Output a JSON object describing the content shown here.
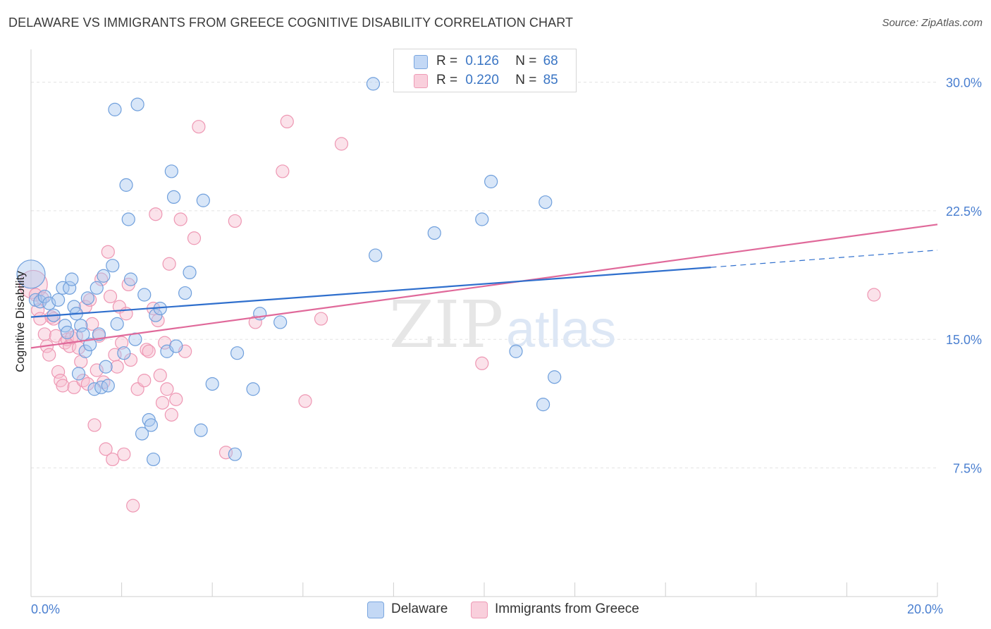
{
  "title": "DELAWARE VS IMMIGRANTS FROM GREECE COGNITIVE DISABILITY CORRELATION CHART",
  "source": "Source: ZipAtlas.com",
  "watermark": {
    "zip": "ZIP",
    "atlas": "atlas"
  },
  "colors": {
    "delaware_fill": "#a9c8f0",
    "delaware_stroke": "#6f9fdc",
    "delaware_line": "#2f6fcd",
    "greece_fill": "#f7bfd0",
    "greece_stroke": "#ee97b3",
    "greece_line": "#e0699a",
    "tick_text": "#4a7fd0",
    "grid": "#e3e3e3"
  },
  "legend": {
    "r_label": "R =",
    "n_label": "N =",
    "rows": [
      {
        "series": "Delaware",
        "r": "0.126",
        "n": "68"
      },
      {
        "series": "Immigrants from Greece",
        "r": "0.220",
        "n": "85"
      }
    ]
  },
  "chart_data": {
    "type": "scatter",
    "title": "DELAWARE VS IMMIGRANTS FROM GREECE COGNITIVE DISABILITY CORRELATION CHART",
    "xlabel": "",
    "ylabel": "Cognitive Disability",
    "xlim": [
      0,
      20
    ],
    "ylim": [
      0,
      31.5
    ],
    "x_ticks": [
      "0.0%",
      "20.0%"
    ],
    "y_ticks": [
      {
        "value": 7.5,
        "label": "7.5%"
      },
      {
        "value": 15.0,
        "label": "15.0%"
      },
      {
        "value": 22.5,
        "label": "22.5%"
      },
      {
        "value": 30.0,
        "label": "30.0%"
      }
    ],
    "grid": true,
    "legend_position": "top-center",
    "series": [
      {
        "name": "Delaware",
        "r": 0.126,
        "n": 68,
        "trend": {
          "x": [
            0,
            15.0
          ],
          "y": [
            16.3,
            19.2
          ],
          "dashed_to": [
            20.0,
            20.2
          ]
        },
        "points": [
          [
            0.0,
            18.8,
            "large"
          ],
          [
            0.1,
            17.3
          ],
          [
            0.2,
            17.2
          ],
          [
            0.3,
            17.5
          ],
          [
            0.4,
            17.1
          ],
          [
            0.5,
            16.4
          ],
          [
            0.6,
            17.3
          ],
          [
            0.7,
            18.0
          ],
          [
            0.75,
            15.8
          ],
          [
            0.8,
            15.4
          ],
          [
            0.85,
            18.0
          ],
          [
            0.9,
            18.5
          ],
          [
            0.95,
            16.9
          ],
          [
            1.0,
            16.5
          ],
          [
            1.05,
            13.0
          ],
          [
            1.1,
            15.8
          ],
          [
            1.15,
            15.3
          ],
          [
            1.2,
            14.3
          ],
          [
            1.25,
            17.4
          ],
          [
            1.3,
            14.7
          ],
          [
            1.4,
            12.1
          ],
          [
            1.45,
            18.0
          ],
          [
            1.5,
            15.3
          ],
          [
            1.55,
            12.2
          ],
          [
            1.6,
            18.7
          ],
          [
            1.65,
            13.4
          ],
          [
            1.7,
            12.3
          ],
          [
            1.8,
            19.3
          ],
          [
            1.85,
            28.4
          ],
          [
            1.9,
            15.9
          ],
          [
            2.05,
            14.2
          ],
          [
            2.1,
            24.0
          ],
          [
            2.15,
            22.0
          ],
          [
            2.2,
            18.5
          ],
          [
            2.3,
            15.0
          ],
          [
            2.35,
            28.7
          ],
          [
            2.45,
            9.5
          ],
          [
            2.5,
            17.6
          ],
          [
            2.6,
            10.3
          ],
          [
            2.65,
            10.0
          ],
          [
            2.7,
            8.0
          ],
          [
            2.75,
            16.4
          ],
          [
            2.85,
            16.8
          ],
          [
            3.0,
            14.3
          ],
          [
            3.1,
            24.8
          ],
          [
            3.15,
            23.3
          ],
          [
            3.2,
            14.6
          ],
          [
            3.4,
            17.7
          ],
          [
            3.5,
            18.9
          ],
          [
            3.75,
            9.7
          ],
          [
            3.8,
            23.1
          ],
          [
            4.0,
            12.4
          ],
          [
            4.5,
            8.3
          ],
          [
            4.55,
            14.2
          ],
          [
            4.9,
            12.1
          ],
          [
            5.05,
            16.5
          ],
          [
            5.5,
            16.0
          ],
          [
            7.55,
            29.9
          ],
          [
            7.6,
            19.9
          ],
          [
            8.9,
            21.2
          ],
          [
            9.95,
            22.0
          ],
          [
            10.15,
            24.2
          ],
          [
            10.7,
            14.3
          ],
          [
            11.3,
            11.2
          ],
          [
            11.35,
            23.0
          ],
          [
            11.55,
            12.8
          ]
        ]
      },
      {
        "name": "Immigrants from Greece",
        "r": 0.22,
        "n": 85,
        "trend": {
          "x": [
            0,
            20.0
          ],
          "y": [
            14.5,
            21.7
          ]
        },
        "points": [
          [
            0.05,
            18.2,
            "large"
          ],
          [
            0.1,
            17.6
          ],
          [
            0.15,
            16.7
          ],
          [
            0.2,
            16.2
          ],
          [
            0.25,
            17.4
          ],
          [
            0.3,
            15.3
          ],
          [
            0.35,
            14.6
          ],
          [
            0.4,
            14.1
          ],
          [
            0.45,
            16.3
          ],
          [
            0.5,
            16.2
          ],
          [
            0.55,
            15.2
          ],
          [
            0.6,
            13.1
          ],
          [
            0.65,
            12.6
          ],
          [
            0.7,
            12.3
          ],
          [
            0.75,
            14.8
          ],
          [
            0.8,
            15.0
          ],
          [
            0.85,
            14.6
          ],
          [
            0.9,
            15.1
          ],
          [
            0.95,
            12.2
          ],
          [
            1.0,
            15.2
          ],
          [
            1.05,
            14.5
          ],
          [
            1.1,
            13.7
          ],
          [
            1.15,
            12.6
          ],
          [
            1.2,
            16.9
          ],
          [
            1.25,
            12.4
          ],
          [
            1.3,
            17.3
          ],
          [
            1.35,
            15.9
          ],
          [
            1.4,
            10.0
          ],
          [
            1.45,
            13.2
          ],
          [
            1.5,
            15.2
          ],
          [
            1.55,
            18.5
          ],
          [
            1.6,
            12.5
          ],
          [
            1.65,
            8.6
          ],
          [
            1.7,
            20.1
          ],
          [
            1.75,
            17.5
          ],
          [
            1.8,
            8.0
          ],
          [
            1.85,
            14.1
          ],
          [
            1.9,
            13.4
          ],
          [
            1.95,
            16.9
          ],
          [
            2.0,
            14.8
          ],
          [
            2.05,
            8.3
          ],
          [
            2.1,
            16.5
          ],
          [
            2.15,
            18.2
          ],
          [
            2.2,
            13.8
          ],
          [
            2.25,
            5.3
          ],
          [
            2.35,
            12.1
          ],
          [
            2.5,
            12.6
          ],
          [
            2.55,
            14.4
          ],
          [
            2.6,
            14.3
          ],
          [
            2.7,
            16.8
          ],
          [
            2.75,
            22.3
          ],
          [
            2.8,
            16.1
          ],
          [
            2.85,
            12.9
          ],
          [
            2.9,
            11.3
          ],
          [
            2.95,
            14.8
          ],
          [
            3.0,
            12.1
          ],
          [
            3.05,
            19.4
          ],
          [
            3.1,
            10.6
          ],
          [
            3.2,
            11.5
          ],
          [
            3.3,
            22.0
          ],
          [
            3.4,
            14.3
          ],
          [
            3.6,
            20.9
          ],
          [
            3.7,
            27.4
          ],
          [
            4.3,
            8.4
          ],
          [
            4.5,
            21.9
          ],
          [
            4.95,
            16.0
          ],
          [
            5.55,
            24.8
          ],
          [
            5.65,
            27.7
          ],
          [
            6.05,
            11.4
          ],
          [
            6.4,
            16.2
          ],
          [
            6.85,
            26.4
          ],
          [
            9.95,
            13.6
          ],
          [
            18.6,
            17.6
          ]
        ]
      }
    ]
  },
  "bottom_legend": [
    "Delaware",
    "Immigrants from Greece"
  ]
}
